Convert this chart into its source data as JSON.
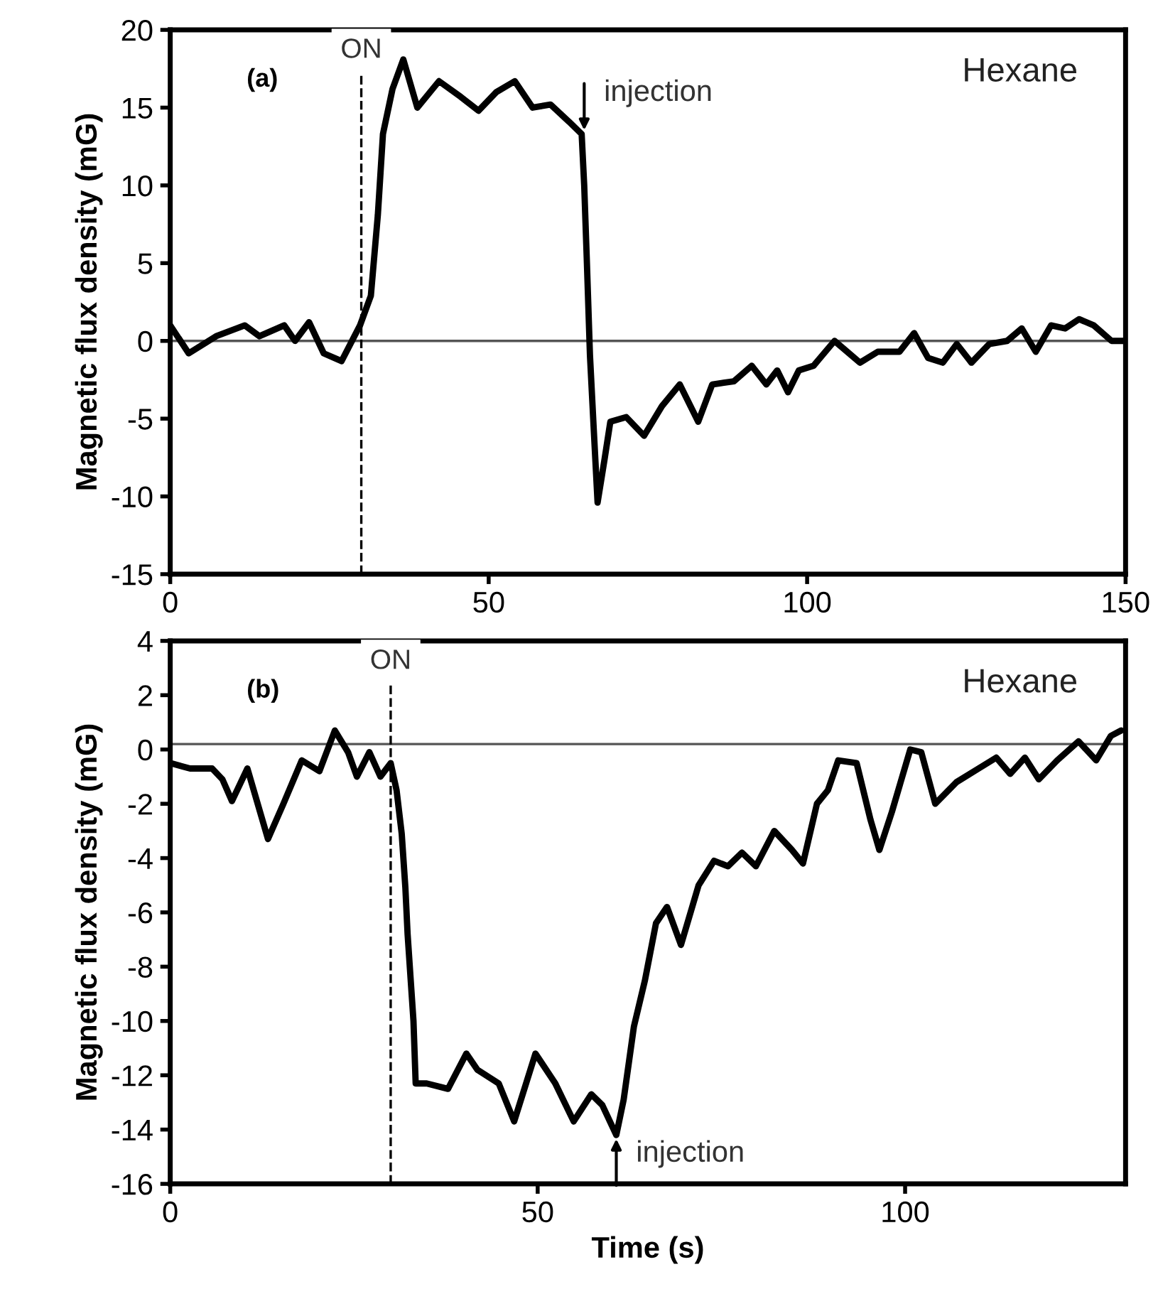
{
  "chart_data": [
    {
      "type": "line",
      "ylabel": "Magnetic flux density (mG)",
      "xlim": [
        0,
        150
      ],
      "xticks": [
        0,
        50,
        100,
        150
      ],
      "ylim": [
        -15,
        20
      ],
      "yticks": [
        -15,
        -10,
        -5,
        0,
        5,
        10,
        15,
        20
      ],
      "grid": false,
      "legend": false,
      "marker": "none",
      "line_style": "solid",
      "series": [
        {
          "color": "#000000",
          "x": [
            0,
            2.9,
            7.2,
            11.7,
            14,
            17.9,
            19.6,
            21.8,
            24.1,
            26.9,
            29.8,
            31.5,
            32.6,
            33.4,
            34.9,
            36.6,
            38.8,
            42.2,
            45.6,
            48.4,
            51.2,
            54.1,
            56.9,
            59.7,
            62.6,
            64.6,
            65,
            65.4,
            65.9,
            66.5,
            67.1,
            68.2,
            69.1,
            71.6,
            74.4,
            77.2,
            80,
            82.9,
            85.1,
            88.5,
            91.3,
            93.6,
            95.3,
            97,
            98.7,
            101,
            104.3,
            108.3,
            111.1,
            114.5,
            116.8,
            119,
            121.3,
            123.5,
            125.8,
            128.6,
            131.4,
            133.7,
            135.9,
            138.3,
            140.5,
            142.7,
            145,
            147.8,
            150
          ],
          "values": [
            1.0,
            -0.8,
            0.3,
            1.0,
            0.3,
            1.0,
            0,
            1.2,
            -0.8,
            -1.3,
            1.0,
            2.9,
            8.1,
            13.3,
            16.2,
            18.1,
            15.0,
            16.7,
            15.7,
            14.8,
            16.0,
            16.7,
            15.0,
            15.2,
            14.1,
            13.3,
            10,
            5.3,
            -0.9,
            -5.7,
            -10.4,
            -7.6,
            -5.2,
            -4.9,
            -6.1,
            -4.2,
            -2.8,
            -5.2,
            -2.8,
            -2.6,
            -1.6,
            -2.8,
            -1.9,
            -3.3,
            -1.9,
            -1.6,
            0,
            -1.4,
            -0.7,
            -0.7,
            0.5,
            -1.1,
            -1.4,
            -0.2,
            -1.4,
            -0.2,
            0,
            0.8,
            -0.7,
            1.0,
            0.8,
            1.4,
            1.0,
            0,
            0
          ]
        }
      ],
      "ref_lines": [
        {
          "axis": "y",
          "value": 0,
          "color": "#555555",
          "line_style": "solid"
        },
        {
          "axis": "x",
          "value": 30,
          "label": "ON",
          "color": "#000000",
          "line_style": "dashed"
        }
      ],
      "annotations": [
        "(a)",
        "Hexane",
        {
          "text": "injection",
          "x": 65,
          "y": 13.3
        }
      ]
    },
    {
      "type": "line",
      "xlabel": "Time (s)",
      "ylabel": "Magnetic flux density (mG)",
      "xlim": [
        0,
        130
      ],
      "xticks": [
        0,
        50,
        100
      ],
      "ylim": [
        -16,
        4
      ],
      "yticks": [
        -16,
        -14,
        -12,
        -10,
        -8,
        -6,
        -4,
        -2,
        0,
        2,
        4
      ],
      "grid": false,
      "legend": false,
      "marker": "none",
      "line_style": "solid",
      "series": [
        {
          "color": "#000000",
          "x": [
            0,
            2.7,
            5.7,
            7.1,
            8.4,
            10.5,
            13.3,
            15.4,
            17.9,
            20.3,
            22.4,
            24.2,
            25.4,
            27.1,
            28.6,
            30,
            30.8,
            31.5,
            32,
            32.3,
            32.7,
            33.1,
            33.4,
            34.9,
            37.8,
            40.3,
            41.8,
            44.7,
            46.8,
            49.7,
            52.4,
            54.9,
            57.3,
            58.8,
            60.7,
            61.7,
            63.1,
            64.6,
            66.1,
            67.6,
            69.5,
            71.9,
            74,
            75.9,
            77.8,
            79.7,
            82.2,
            84.6,
            86.1,
            88,
            89.5,
            90.9,
            93.4,
            95.3,
            96.5,
            98.2,
            100.7,
            102.2,
            104.1,
            107,
            110,
            112.4,
            114.3,
            116.3,
            118.2,
            120.7,
            123.6,
            126,
            128,
            129.4
          ],
          "values": [
            -0.5,
            -0.7,
            -0.7,
            -1.1,
            -1.9,
            -0.7,
            -3.3,
            -2.0,
            -0.4,
            -0.8,
            0.7,
            -0.1,
            -1.0,
            -0.1,
            -1.0,
            -0.5,
            -1.5,
            -3.1,
            -5.1,
            -6.8,
            -8.4,
            -10.0,
            -12.3,
            -12.3,
            -12.5,
            -11.2,
            -11.8,
            -12.3,
            -13.7,
            -11.2,
            -12.3,
            -13.7,
            -12.7,
            -13.1,
            -14.2,
            -12.9,
            -10.2,
            -8.5,
            -6.4,
            -5.8,
            -7.2,
            -5.0,
            -4.1,
            -4.3,
            -3.8,
            -4.3,
            -3.0,
            -3.7,
            -4.2,
            -2.0,
            -1.5,
            -0.4,
            -0.5,
            -2.6,
            -3.7,
            -2.3,
            0,
            -0.1,
            -2.0,
            -1.2,
            -0.7,
            -0.3,
            -0.9,
            -0.3,
            -1.1,
            -0.4,
            0.3,
            -0.4,
            0.5,
            0.7
          ]
        }
      ],
      "ref_lines": [
        {
          "axis": "y",
          "value": 0.2,
          "color": "#555555",
          "line_style": "solid"
        },
        {
          "axis": "x",
          "value": 30,
          "label": "ON",
          "color": "#000000",
          "line_style": "dashed"
        }
      ],
      "annotations": [
        "(b)",
        "Hexane",
        {
          "text": "injection",
          "x": 60.7,
          "y": -14.2
        }
      ]
    }
  ]
}
